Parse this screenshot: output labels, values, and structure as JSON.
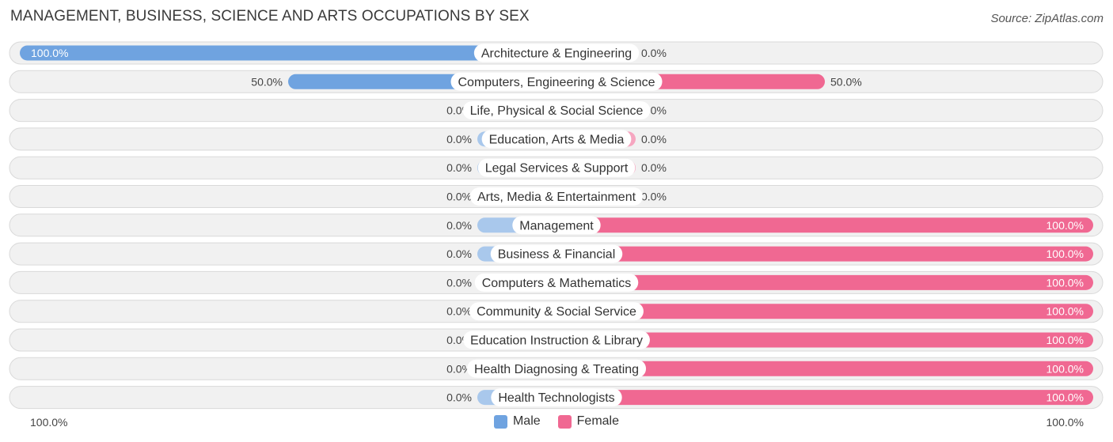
{
  "title": "MANAGEMENT, BUSINESS, SCIENCE AND ARTS OCCUPATIONS BY SEX",
  "source": "Source: ZipAtlas.com",
  "colors": {
    "male": "#6fa3e0",
    "male_light": "#a9c8ec",
    "female": "#f06892",
    "female_light": "#f6a6c0"
  },
  "axis": {
    "left_label": "100.0%",
    "right_label": "100.0%"
  },
  "legend": {
    "male": "Male",
    "female": "Female"
  },
  "chart_data": {
    "type": "bar",
    "orientation": "horizontal-diverging",
    "title": "MANAGEMENT, BUSINESS, SCIENCE AND ARTS OCCUPATIONS BY SEX",
    "xlim": [
      -100,
      100
    ],
    "categories": [
      "Architecture & Engineering",
      "Computers, Engineering & Science",
      "Life, Physical & Social Science",
      "Education, Arts & Media",
      "Legal Services & Support",
      "Arts, Media & Entertainment",
      "Management",
      "Business & Financial",
      "Computers & Mathematics",
      "Community & Social Service",
      "Education Instruction & Library",
      "Health Diagnosing & Treating",
      "Health Technologists"
    ],
    "series": [
      {
        "name": "Male",
        "values": [
          100,
          50,
          0,
          0,
          0,
          0,
          0,
          0,
          0,
          0,
          0,
          0,
          0
        ],
        "labels": [
          "100.0%",
          "50.0%",
          "0.0%",
          "0.0%",
          "0.0%",
          "0.0%",
          "0.0%",
          "0.0%",
          "0.0%",
          "0.0%",
          "0.0%",
          "0.0%",
          "0.0%"
        ]
      },
      {
        "name": "Female",
        "values": [
          0,
          50,
          0,
          0,
          0,
          0,
          100,
          100,
          100,
          100,
          100,
          100,
          100
        ],
        "labels": [
          "0.0%",
          "50.0%",
          "0.0%",
          "0.0%",
          "0.0%",
          "0.0%",
          "100.0%",
          "100.0%",
          "100.0%",
          "100.0%",
          "100.0%",
          "100.0%",
          "100.0%"
        ]
      }
    ]
  }
}
